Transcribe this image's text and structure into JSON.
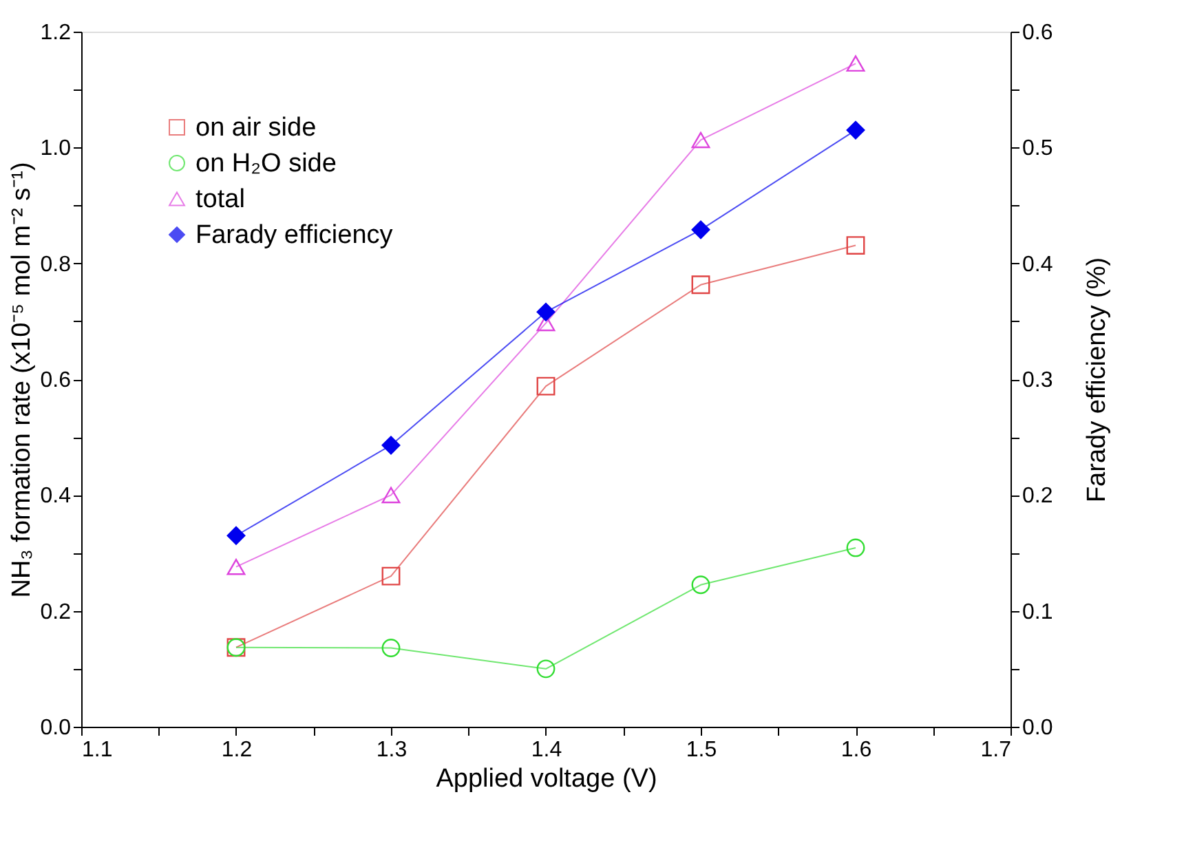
{
  "chart_data": {
    "type": "line",
    "xlabel": "Applied voltage (V)",
    "ylabel": "NH₃ formation rate (x10⁻⁵ mol m⁻² s⁻¹)",
    "y2label": "Farady efficiency (%)",
    "x": [
      1.2,
      1.3,
      1.4,
      1.5,
      1.6
    ],
    "series": [
      {
        "name": "on air side",
        "color": "#e04545",
        "marker": "square",
        "values": [
          0.137,
          0.26,
          0.588,
          0.763,
          0.831
        ]
      },
      {
        "name": "on H₂O side",
        "color": "#33dd33",
        "marker": "circle",
        "values": [
          0.137,
          0.136,
          0.1,
          0.245,
          0.309
        ]
      },
      {
        "name": "total",
        "color": "#dd44dd",
        "marker": "triangle",
        "values": [
          0.276,
          0.4,
          0.697,
          1.013,
          1.145
        ]
      },
      {
        "name": "Farady efficiency",
        "color": "#0000ee",
        "marker": "diamond",
        "axis": "y2",
        "values": [
          0.165,
          0.243,
          0.358,
          0.429,
          0.515
        ]
      }
    ],
    "xlim": [
      1.1,
      1.7
    ],
    "xticks": [
      1.1,
      {
        "value": 1.15,
        "label": null
      },
      1.2,
      {
        "value": 1.25,
        "label": null
      },
      1.3,
      {
        "value": 1.35,
        "label": null
      },
      1.4,
      {
        "value": 1.45,
        "label": null
      },
      1.5,
      {
        "value": 1.55,
        "label": null
      },
      1.6,
      {
        "value": 1.65,
        "label": null
      },
      1.7
    ],
    "ylim": [
      0,
      1.2
    ],
    "yticks": [
      {
        "value": 0,
        "label": "0.0"
      },
      {
        "value": 0.1,
        "label": null
      },
      0.2,
      {
        "value": 0.3,
        "label": null
      },
      0.4,
      {
        "value": 0.5,
        "label": null
      },
      0.6,
      {
        "value": 0.7,
        "label": null
      },
      0.8,
      {
        "value": 0.9,
        "label": null
      },
      {
        "value": 1,
        "label": "1.0"
      },
      {
        "value": 1.1,
        "label": null
      },
      1.2
    ],
    "y2lim": [
      0,
      0.6
    ],
    "y2ticks": [
      {
        "value": 0,
        "label": "0.0"
      },
      {
        "value": 0.05,
        "label": null
      },
      0.1,
      {
        "value": 0.15,
        "label": null
      },
      0.2,
      {
        "value": 0.25,
        "label": null
      },
      0.3,
      {
        "value": 0.35,
        "label": null
      },
      0.4,
      {
        "value": 0.45,
        "label": null
      },
      0.5,
      {
        "value": 0.55,
        "label": null
      },
      0.6
    ],
    "legend": "top left",
    "grid": false
  }
}
